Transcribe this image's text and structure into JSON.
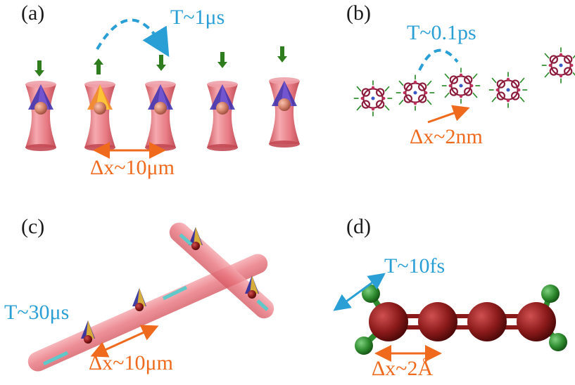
{
  "panels": {
    "a": {
      "label": "(a)",
      "time_label": "T~1μs",
      "distance_label": "Δx~10μm"
    },
    "b": {
      "label": "(b)",
      "time_label": "T~0.1ps",
      "distance_label": "Δx~2nm"
    },
    "c": {
      "label": "(c)",
      "time_label": "T~30μs",
      "distance_label": "Δx~10μm"
    },
    "d": {
      "label": "(d)",
      "time_label": "T~10fs",
      "distance_label": "Δx~2Å"
    }
  },
  "colors": {
    "time_annotation": "#2a9fd6",
    "distance_annotation": "#f06a1e",
    "trap": "#e8707a",
    "spin_arrow": "#2f7d1e",
    "atom": "#8b1a1a",
    "ligand": "#2e8b2e"
  }
}
